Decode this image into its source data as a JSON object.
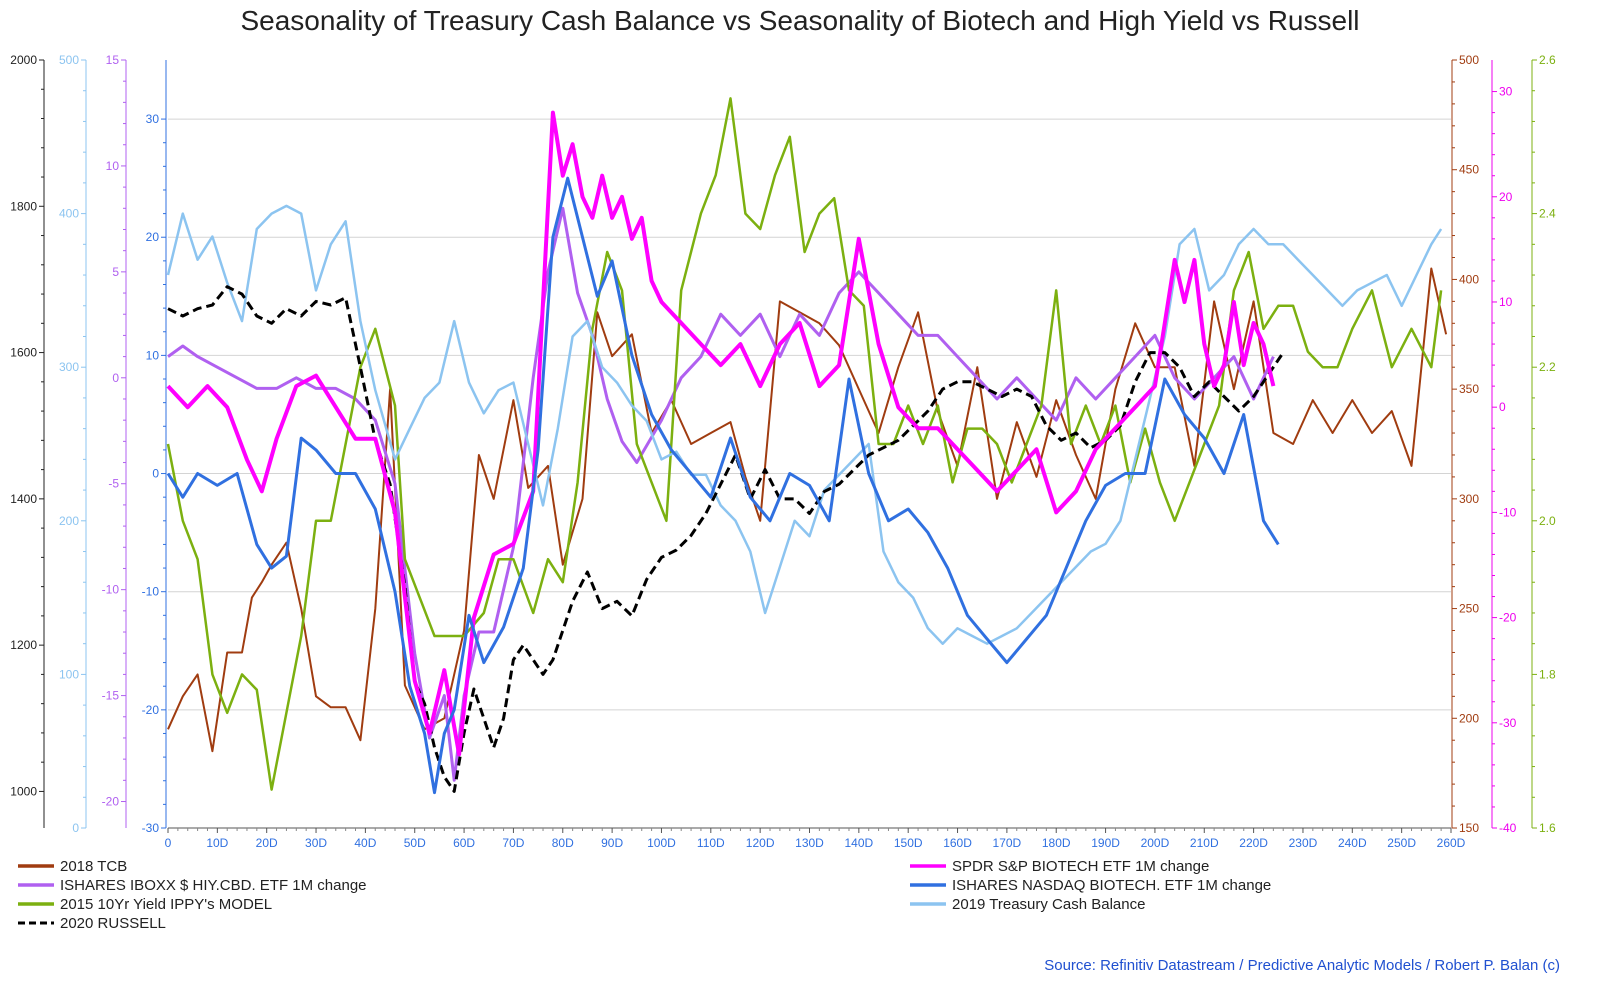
{
  "chart_data": {
    "type": "line",
    "title": "Seasonality of Treasury Cash Balance vs Seasonality of Biotech and High Yield vs Russell",
    "source": "Source: Refinitiv Datastream / Predictive Analytic Models / Robert P. Balan (c)",
    "grid": true,
    "x_axis": {
      "range": [
        0,
        260
      ],
      "ticks": [
        "0",
        "10D",
        "20D",
        "30D",
        "40D",
        "50D",
        "60D",
        "70D",
        "80D",
        "90D",
        "100D",
        "110D",
        "120D",
        "130D",
        "140D",
        "150D",
        "160D",
        "170D",
        "180D",
        "190D",
        "200D",
        "210D",
        "220D",
        "230D",
        "240D",
        "250D",
        "260D"
      ]
    },
    "axes": {
      "left_black": {
        "range": [
          950,
          2000
        ],
        "ticks": [
          "1000",
          "1200",
          "1400",
          "1600",
          "1800",
          "2000"
        ],
        "color": "#222222"
      },
      "left_lightblue": {
        "range": [
          0,
          500
        ],
        "ticks": [
          "0",
          "100",
          "200",
          "300",
          "400",
          "500"
        ],
        "color": "#8cc4f0"
      },
      "left_purple": {
        "range": [
          -21.25,
          15
        ],
        "ticks": [
          "-20",
          "-15",
          "-10",
          "-5",
          "0",
          "5",
          "10",
          "15"
        ],
        "color": "#b060f0"
      },
      "left_blue": {
        "range": [
          -30,
          35
        ],
        "ticks": [
          "-30",
          "-20",
          "-10",
          "0",
          "10",
          "20",
          "30"
        ],
        "color": "#3070e0"
      },
      "right_brown": {
        "range": [
          150,
          500
        ],
        "ticks": [
          "150",
          "200",
          "250",
          "300",
          "350",
          "400",
          "450",
          "500"
        ],
        "color": "#a03c10"
      },
      "right_magenta": {
        "range": [
          -40,
          33
        ],
        "ticks": [
          "-40",
          "-30",
          "-20",
          "-10",
          "0",
          "10",
          "20",
          "30"
        ],
        "color": "#ee00ee"
      },
      "right_green": {
        "range": [
          1.6,
          2.6
        ],
        "ticks": [
          "1.6",
          "1.8",
          "2.0",
          "2.2",
          "2.4",
          "2.6"
        ],
        "color": "#7cb010"
      }
    },
    "series": [
      {
        "name": "2018 TCB",
        "color": "#a03c10",
        "axis": "right_brown",
        "dash": false,
        "width": 2,
        "x": [
          0,
          3,
          6,
          9,
          12,
          15,
          17,
          19,
          21,
          24,
          27,
          30,
          33,
          36,
          39,
          42,
          45,
          48,
          52,
          56,
          60,
          63,
          66,
          70,
          73,
          77,
          80,
          84,
          87,
          90,
          94,
          98,
          102,
          106,
          110,
          114,
          117,
          120,
          124,
          128,
          132,
          136,
          140,
          144,
          148,
          152,
          156,
          160,
          164,
          168,
          172,
          176,
          180,
          184,
          188,
          192,
          196,
          200,
          204,
          208,
          212,
          216,
          220,
          224,
          228,
          232,
          236,
          240,
          244,
          248,
          252,
          256,
          259
        ],
        "y": [
          195,
          210,
          220,
          185,
          230,
          230,
          255,
          262,
          270,
          280,
          250,
          210,
          205,
          205,
          190,
          250,
          350,
          215,
          195,
          200,
          240,
          320,
          300,
          345,
          305,
          315,
          270,
          300,
          385,
          365,
          375,
          330,
          345,
          325,
          330,
          335,
          310,
          290,
          390,
          385,
          380,
          370,
          350,
          330,
          360,
          385,
          340,
          315,
          360,
          300,
          335,
          310,
          345,
          320,
          300,
          350,
          380,
          360,
          360,
          315,
          390,
          350,
          390,
          330,
          325,
          345,
          330,
          345,
          330,
          340,
          315,
          405,
          375
        ]
      },
      {
        "name": "SPDR S&P BIOTECH ETF 1M change",
        "color": "#ff00ff",
        "axis": "right_magenta",
        "dash": false,
        "width": 4,
        "x": [
          0,
          4,
          8,
          12,
          16,
          19,
          22,
          26,
          30,
          34,
          38,
          42,
          46,
          50,
          53,
          56,
          59,
          62,
          66,
          70,
          74,
          76,
          78,
          80,
          82,
          84,
          86,
          88,
          90,
          92,
          94,
          96,
          98,
          100,
          104,
          108,
          112,
          116,
          120,
          124,
          128,
          132,
          136,
          140,
          144,
          148,
          152,
          156,
          160,
          164,
          168,
          172,
          176,
          180,
          184,
          188,
          192,
          196,
          200,
          202,
          204,
          206,
          208,
          210,
          212,
          214,
          216,
          218,
          220,
          222,
          224
        ],
        "y": [
          2,
          0,
          2,
          0,
          -5,
          -8,
          -3,
          2,
          3,
          0,
          -3,
          -3,
          -10,
          -26,
          -31,
          -25,
          -33,
          -20,
          -14,
          -13,
          -8,
          10,
          28,
          22,
          25,
          20,
          18,
          22,
          18,
          20,
          16,
          18,
          12,
          10,
          8,
          6,
          4,
          6,
          2,
          6,
          8,
          2,
          4,
          16,
          6,
          0,
          -2,
          -2,
          -4,
          -6,
          -8,
          -6,
          -4,
          -10,
          -8,
          -4,
          -2,
          0,
          2,
          8,
          14,
          10,
          14,
          6,
          2,
          4,
          10,
          4,
          8,
          6,
          2
        ]
      },
      {
        "name": "ISHARES IBOXX $ HIY.CBD. ETF 1M change",
        "color": "#b060f0",
        "axis": "left_purple",
        "dash": false,
        "width": 3,
        "x": [
          0,
          3,
          6,
          10,
          14,
          18,
          22,
          26,
          30,
          34,
          38,
          42,
          46,
          50,
          53,
          56,
          58,
          60,
          63,
          66,
          70,
          74,
          77,
          80,
          83,
          86,
          89,
          92,
          95,
          100,
          104,
          108,
          112,
          116,
          120,
          124,
          128,
          132,
          136,
          140,
          144,
          148,
          152,
          156,
          160,
          164,
          168,
          172,
          176,
          180,
          184,
          188,
          192,
          196,
          200,
          204,
          208,
          212,
          216,
          220,
          224
        ],
        "y": [
          1,
          1.5,
          1,
          0.5,
          0,
          -0.5,
          -0.5,
          0,
          -0.5,
          -0.5,
          -1,
          -2,
          -5,
          -13,
          -17,
          -15,
          -19,
          -15,
          -12,
          -12,
          -8,
          0,
          5,
          8,
          4,
          2,
          -1,
          -3,
          -4,
          -2,
          0,
          1,
          3,
          2,
          3,
          1,
          3,
          2,
          4,
          5,
          4,
          3,
          2,
          2,
          1,
          0,
          -1,
          0,
          -1,
          -2,
          0,
          -1,
          0,
          1,
          2,
          0,
          -1,
          0,
          1,
          -1,
          1
        ]
      },
      {
        "name": "ISHARES NASDAQ BIOTECH. ETF 1M change",
        "color": "#3070e0",
        "axis": "left_blue",
        "dash": false,
        "width": 3,
        "x": [
          0,
          3,
          6,
          10,
          14,
          18,
          21,
          24,
          27,
          30,
          34,
          38,
          42,
          46,
          49,
          52,
          54,
          56,
          58,
          61,
          64,
          68,
          72,
          75,
          78,
          81,
          84,
          87,
          90,
          94,
          98,
          102,
          106,
          110,
          114,
          118,
          122,
          126,
          130,
          134,
          138,
          142,
          146,
          150,
          154,
          158,
          162,
          166,
          170,
          174,
          178,
          182,
          186,
          190,
          194,
          198,
          202,
          206,
          210,
          214,
          218,
          222,
          225
        ],
        "y": [
          0,
          -2,
          0,
          -1,
          0,
          -6,
          -8,
          -7,
          3,
          2,
          0,
          0,
          -3,
          -10,
          -18,
          -22,
          -27,
          -22,
          -20,
          -12,
          -16,
          -13,
          -8,
          2,
          20,
          25,
          20,
          15,
          18,
          10,
          5,
          2,
          0,
          -2,
          3,
          -2,
          -4,
          0,
          -1,
          -4,
          8,
          0,
          -4,
          -3,
          -5,
          -8,
          -12,
          -14,
          -16,
          -14,
          -12,
          -8,
          -4,
          -1,
          0,
          0,
          8,
          5,
          3,
          0,
          5,
          -4,
          -6
        ]
      },
      {
        "name": "2015 10Yr Yield IPPY's MODEL",
        "color": "#7cb010",
        "axis": "right_green",
        "dash": false,
        "width": 2.5,
        "x": [
          0,
          3,
          6,
          9,
          12,
          15,
          18,
          21,
          24,
          27,
          30,
          33,
          36,
          39,
          42,
          46,
          48,
          51,
          54,
          57,
          60,
          64,
          67,
          70,
          74,
          77,
          80,
          83,
          86,
          89,
          92,
          95,
          98,
          101,
          104,
          108,
          111,
          114,
          117,
          120,
          123,
          126,
          129,
          132,
          135,
          138,
          141,
          144,
          147,
          150,
          153,
          156,
          159,
          162,
          165,
          168,
          171,
          174,
          177,
          180,
          183,
          186,
          189,
          192,
          195,
          198,
          201,
          204,
          207,
          210,
          213,
          216,
          219,
          222,
          225,
          228,
          231,
          234,
          237,
          240,
          244,
          248,
          252,
          256,
          258
        ],
        "y": [
          2.1,
          2.0,
          1.95,
          1.8,
          1.75,
          1.8,
          1.78,
          1.65,
          1.75,
          1.85,
          2.0,
          2.0,
          2.1,
          2.2,
          2.25,
          2.15,
          1.95,
          1.9,
          1.85,
          1.85,
          1.85,
          1.88,
          1.95,
          1.95,
          1.88,
          1.95,
          1.92,
          2.05,
          2.25,
          2.35,
          2.3,
          2.1,
          2.05,
          2.0,
          2.3,
          2.4,
          2.45,
          2.55,
          2.4,
          2.38,
          2.45,
          2.5,
          2.35,
          2.4,
          2.42,
          2.3,
          2.28,
          2.1,
          2.1,
          2.15,
          2.1,
          2.15,
          2.05,
          2.12,
          2.12,
          2.1,
          2.05,
          2.1,
          2.15,
          2.3,
          2.1,
          2.15,
          2.1,
          2.15,
          2.05,
          2.12,
          2.05,
          2.0,
          2.05,
          2.1,
          2.15,
          2.3,
          2.35,
          2.25,
          2.28,
          2.28,
          2.22,
          2.2,
          2.2,
          2.25,
          2.3,
          2.2,
          2.25,
          2.2,
          2.3
        ]
      },
      {
        "name": "2019 Treasury Cash Balance",
        "color": "#8cc4f0",
        "axis": "left_lightblue",
        "dash": false,
        "width": 2.5,
        "x": [
          0,
          3,
          6,
          9,
          12,
          15,
          18,
          21,
          24,
          27,
          30,
          33,
          36,
          39,
          42,
          46,
          49,
          52,
          55,
          58,
          61,
          64,
          67,
          70,
          73,
          76,
          79,
          82,
          85,
          88,
          91,
          94,
          97,
          100,
          103,
          106,
          109,
          112,
          115,
          118,
          121,
          124,
          127,
          130,
          133,
          136,
          139,
          142,
          145,
          148,
          151,
          154,
          157,
          160,
          163,
          166,
          169,
          172,
          175,
          178,
          181,
          184,
          187,
          190,
          193,
          196,
          199,
          202,
          205,
          208,
          211,
          214,
          217,
          220,
          223,
          226,
          229,
          232,
          235,
          238,
          241,
          244,
          247,
          250,
          253,
          256,
          258
        ],
        "y": [
          360,
          400,
          370,
          385,
          355,
          330,
          390,
          400,
          405,
          400,
          350,
          380,
          395,
          330,
          285,
          240,
          260,
          280,
          290,
          330,
          290,
          270,
          285,
          290,
          250,
          210,
          260,
          320,
          330,
          300,
          290,
          275,
          265,
          240,
          245,
          230,
          230,
          210,
          200,
          180,
          140,
          170,
          200,
          190,
          220,
          230,
          240,
          250,
          180,
          160,
          150,
          130,
          120,
          130,
          125,
          120,
          125,
          130,
          140,
          150,
          160,
          170,
          180,
          185,
          200,
          240,
          280,
          320,
          380,
          390,
          350,
          360,
          380,
          390,
          380,
          380,
          370,
          360,
          350,
          340,
          350,
          355,
          360,
          340,
          360,
          380,
          390
        ]
      },
      {
        "name": "2020 RUSSELL",
        "color": "#000000",
        "axis": "left_black",
        "dash": true,
        "width": 3,
        "x": [
          0,
          3,
          6,
          9,
          12,
          15,
          18,
          21,
          24,
          27,
          30,
          33,
          36,
          39,
          42,
          45,
          48,
          50,
          52,
          54,
          56,
          58,
          60,
          62,
          64,
          66,
          68,
          70,
          72,
          74,
          76,
          78,
          80,
          82,
          85,
          88,
          91,
          94,
          97,
          100,
          103,
          106,
          109,
          112,
          115,
          118,
          121,
          124,
          127,
          130,
          133,
          136,
          139,
          142,
          145,
          148,
          151,
          154,
          157,
          160,
          163,
          166,
          169,
          172,
          175,
          178,
          181,
          184,
          187,
          190,
          193,
          196,
          199,
          202,
          205,
          208,
          211,
          214,
          217,
          220,
          223,
          226
        ],
        "y": [
          1660,
          1650,
          1660,
          1665,
          1690,
          1680,
          1650,
          1640,
          1660,
          1650,
          1670,
          1665,
          1675,
          1580,
          1480,
          1420,
          1280,
          1150,
          1120,
          1060,
          1020,
          1000,
          1080,
          1140,
          1100,
          1060,
          1100,
          1180,
          1200,
          1180,
          1160,
          1180,
          1220,
          1260,
          1300,
          1250,
          1260,
          1240,
          1290,
          1320,
          1330,
          1350,
          1380,
          1420,
          1460,
          1400,
          1440,
          1400,
          1400,
          1380,
          1410,
          1420,
          1440,
          1460,
          1470,
          1480,
          1500,
          1520,
          1550,
          1560,
          1560,
          1550,
          1540,
          1550,
          1540,
          1500,
          1480,
          1490,
          1470,
          1480,
          1500,
          1560,
          1600,
          1600,
          1580,
          1540,
          1560,
          1540,
          1520,
          1540,
          1570,
          1600
        ]
      }
    ]
  }
}
